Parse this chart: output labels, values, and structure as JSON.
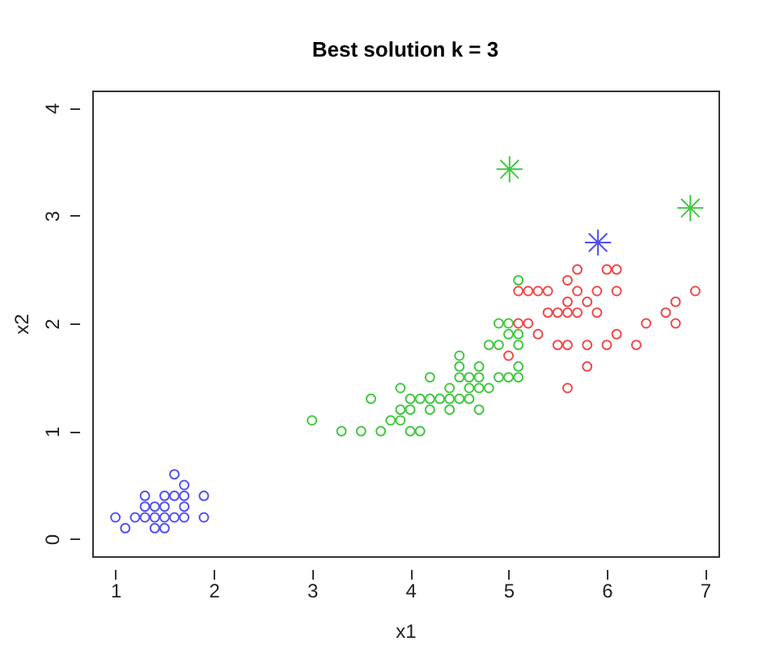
{
  "chart_data": {
    "type": "scatter",
    "title": "Best solution k = 3",
    "xlabel": "x1",
    "ylabel": "x2",
    "xlim": [
      0.764,
      7.136
    ],
    "ylim": [
      -0.16,
      4.16
    ],
    "xticks": [
      1,
      2,
      3,
      4,
      5,
      6,
      7
    ],
    "yticks": [
      0,
      1,
      2,
      3,
      4
    ],
    "grid": false,
    "marker": "circle",
    "series": [
      {
        "color": "#5050f0",
        "x": [
          1,
          1.1,
          1.2,
          1.3,
          1.3,
          1.3,
          1.4,
          1.4,
          1.4,
          1.5,
          1.5,
          1.5,
          1.5,
          1.6,
          1.6,
          1.6,
          1.7,
          1.7,
          1.7,
          1.7,
          1.9,
          1.9
        ],
        "values": [
          0.2,
          0.1,
          0.2,
          0.4,
          0.3,
          0.2,
          0.3,
          0.2,
          0.1,
          0.4,
          0.3,
          0.2,
          0.1,
          0.6,
          0.4,
          0.2,
          0.5,
          0.4,
          0.3,
          0.2,
          0.4,
          0.2
        ]
      },
      {
        "color": "#40c840",
        "x": [
          3.0,
          3.3,
          3.5,
          3.7,
          4.0,
          4.1,
          3.6,
          4.0,
          4.1,
          4.2,
          4.3,
          4.4,
          4.5,
          4.6,
          3.9,
          4.0,
          4.2,
          4.4,
          4.7,
          3.8,
          3.9,
          3.9,
          4.4,
          4.6,
          4.7,
          4.8,
          4.2,
          4.5,
          4.6,
          4.7,
          4.9,
          5.0,
          5.1,
          4.5,
          4.7,
          5.1,
          4.5,
          4.8,
          4.9,
          5.1,
          5.0,
          5.1,
          4.9,
          5.0,
          5.1
        ],
        "values": [
          1.1,
          1.0,
          1.0,
          1.0,
          1.0,
          1.0,
          1.3,
          1.3,
          1.3,
          1.3,
          1.3,
          1.3,
          1.3,
          1.3,
          1.2,
          1.2,
          1.2,
          1.2,
          1.2,
          1.1,
          1.1,
          1.4,
          1.4,
          1.4,
          1.4,
          1.4,
          1.5,
          1.5,
          1.5,
          1.5,
          1.5,
          1.5,
          1.5,
          1.6,
          1.6,
          1.6,
          1.7,
          1.8,
          1.8,
          1.8,
          1.9,
          1.9,
          2.0,
          2.0,
          2.4
        ]
      },
      {
        "color": "#f04848",
        "x": [
          5.7,
          6.0,
          6.1,
          5.6,
          5.1,
          5.2,
          5.3,
          5.4,
          5.7,
          5.9,
          6.1,
          6.9,
          5.6,
          5.8,
          6.7,
          5.4,
          5.5,
          5.6,
          5.7,
          5.9,
          6.6,
          5.1,
          5.2,
          6.4,
          6.7,
          5.3,
          6.1,
          5.5,
          5.6,
          5.8,
          6.0,
          6.3,
          5.0,
          5.8,
          5.6
        ],
        "values": [
          2.5,
          2.5,
          2.5,
          2.4,
          2.3,
          2.3,
          2.3,
          2.3,
          2.3,
          2.3,
          2.3,
          2.3,
          2.2,
          2.2,
          2.2,
          2.1,
          2.1,
          2.1,
          2.1,
          2.1,
          2.1,
          2.0,
          2.0,
          2.0,
          2.0,
          1.9,
          1.9,
          1.8,
          1.8,
          1.8,
          1.8,
          1.8,
          1.7,
          1.6,
          1.4
        ]
      },
      {
        "color": "#40c840",
        "marker": "cross",
        "x": [
          5.01,
          6.85
        ],
        "values": [
          3.43,
          3.07
        ]
      },
      {
        "color": "#5050f0",
        "marker": "cross",
        "x": [
          5.91
        ],
        "values": [
          2.75
        ]
      }
    ]
  }
}
